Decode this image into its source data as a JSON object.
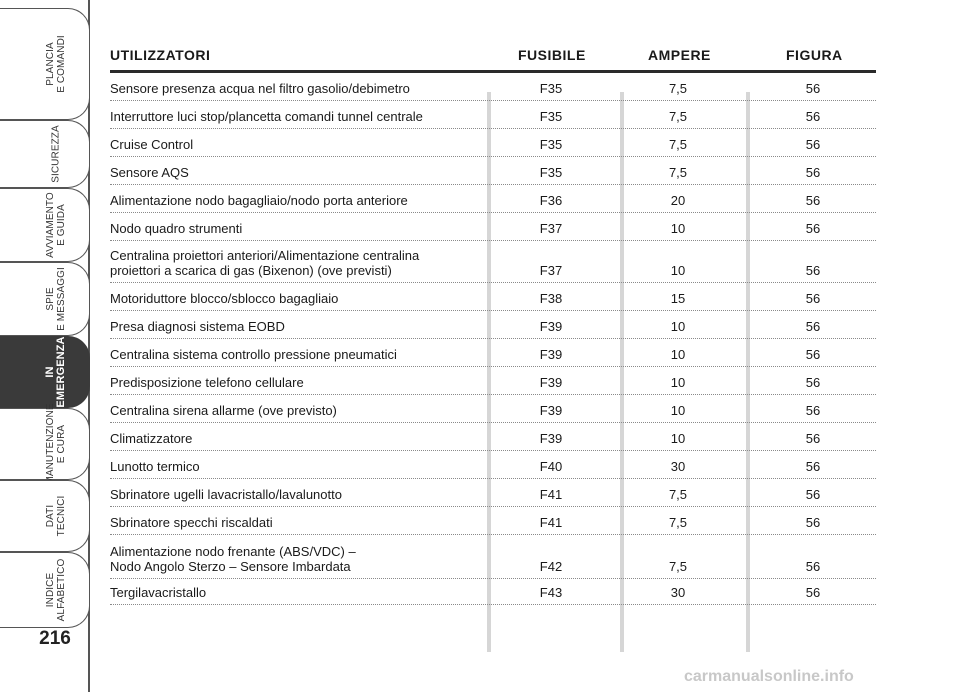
{
  "sidebar": {
    "tabs": [
      {
        "id": "plancia",
        "label": "PLANCIA\nE COMANDI",
        "active": false
      },
      {
        "id": "sicurezza",
        "label": "SICUREZZA",
        "active": false
      },
      {
        "id": "avviamento",
        "label": "AVVIAMENTO\nE GUIDA",
        "active": false
      },
      {
        "id": "spie",
        "label": "SPIE\nE MESSAGGI",
        "active": false
      },
      {
        "id": "emergenza",
        "label": "IN\nEMERGENZA",
        "active": true
      },
      {
        "id": "manutenzione",
        "label": "MANUTENZIONE\nE CURA",
        "active": false
      },
      {
        "id": "dati",
        "label": "DATI\nTECNICI",
        "active": false
      },
      {
        "id": "indice",
        "label": "INDICE\nALFABETICO",
        "active": false
      }
    ],
    "page_number": "216"
  },
  "table": {
    "headers": {
      "desc": "UTILIZZATORI",
      "fuse": "FUSIBILE",
      "amp": "AMPERE",
      "fig": "FIGURA"
    },
    "rows": [
      {
        "desc": "Sensore presenza acqua nel filtro gasolio/debimetro",
        "fuse": "F35",
        "amp": "7,5",
        "fig": "56"
      },
      {
        "desc": "Interruttore luci stop/plancetta comandi tunnel centrale",
        "fuse": "F35",
        "amp": "7,5",
        "fig": "56"
      },
      {
        "desc": "Cruise Control",
        "fuse": "F35",
        "amp": "7,5",
        "fig": "56"
      },
      {
        "desc": "Sensore AQS",
        "fuse": "F35",
        "amp": "7,5",
        "fig": "56"
      },
      {
        "desc": "Alimentazione nodo bagagliaio/nodo porta anteriore",
        "fuse": "F36",
        "amp": "20",
        "fig": "56"
      },
      {
        "desc": "Nodo quadro strumenti",
        "fuse": "F37",
        "amp": "10",
        "fig": "56"
      },
      {
        "desc": "Centralina proiettori anteriori/Alimentazione centralina\nproiettori a scarica di gas (Bixenon) (ove previsti)",
        "fuse": "F37",
        "amp": "10",
        "fig": "56"
      },
      {
        "desc": "Motoriduttore blocco/sblocco bagagliaio",
        "fuse": "F38",
        "amp": "15",
        "fig": "56"
      },
      {
        "desc": "Presa diagnosi sistema EOBD",
        "fuse": "F39",
        "amp": "10",
        "fig": "56"
      },
      {
        "desc": "Centralina sistema controllo pressione pneumatici",
        "fuse": "F39",
        "amp": "10",
        "fig": "56"
      },
      {
        "desc": "Predisposizione telefono cellulare",
        "fuse": "F39",
        "amp": "10",
        "fig": "56"
      },
      {
        "desc": "Centralina sirena allarme (ove previsto)",
        "fuse": "F39",
        "amp": "10",
        "fig": "56"
      },
      {
        "desc": "Climatizzatore",
        "fuse": "F39",
        "amp": "10",
        "fig": "56"
      },
      {
        "desc": "Lunotto termico",
        "fuse": "F40",
        "amp": "30",
        "fig": "56"
      },
      {
        "desc": "Sbrinatore ugelli lavacristallo/lavalunotto",
        "fuse": "F41",
        "amp": "7,5",
        "fig": "56"
      },
      {
        "desc": "Sbrinatore specchi riscaldati",
        "fuse": "F41",
        "amp": "7,5",
        "fig": "56"
      },
      {
        "desc": "Alimentazione nodo frenante (ABS/VDC) –\nNodo Angolo Sterzo – Sensore Imbardata",
        "fuse": "F42",
        "amp": "7,5",
        "fig": "56"
      },
      {
        "desc": "Tergilavacristallo",
        "fuse": "F43",
        "amp": "30",
        "fig": "56"
      }
    ]
  },
  "watermark": "carmanualsonline.info"
}
